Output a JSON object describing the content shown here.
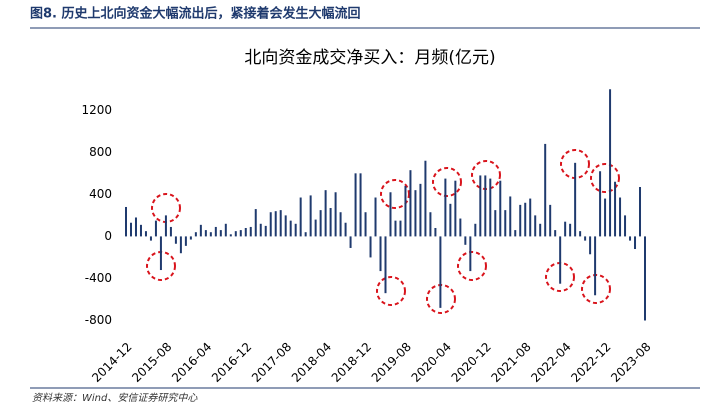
{
  "header": {
    "title": "图8. 历史上北向资金大幅流出后，紧接着会发生大幅流回"
  },
  "source": "资料来源：Wind、安信证券研究中心",
  "chart_data": {
    "type": "bar",
    "title": "北向资金成交净买入：月频(亿元)",
    "color": "#1f3a6e",
    "categories": [
      "2014-12",
      null,
      null,
      null,
      null,
      null,
      null,
      null,
      "2015-08",
      null,
      null,
      null,
      null,
      null,
      null,
      null,
      "2016-04",
      null,
      null,
      null,
      null,
      null,
      null,
      null,
      "2016-12",
      null,
      null,
      null,
      null,
      null,
      null,
      null,
      "2017-08",
      null,
      null,
      null,
      null,
      null,
      null,
      null,
      "2018-04",
      null,
      null,
      null,
      null,
      null,
      null,
      null,
      "2018-12",
      null,
      null,
      null,
      null,
      null,
      null,
      null,
      "2019-08",
      null,
      null,
      null,
      null,
      null,
      null,
      null,
      "2020-04",
      null,
      null,
      null,
      null,
      null,
      null,
      null,
      "2020-12",
      null,
      null,
      null,
      null,
      null,
      null,
      null,
      "2021-08",
      null,
      null,
      null,
      null,
      null,
      null,
      null,
      "2022-04",
      null,
      null,
      null,
      null,
      null,
      null,
      null,
      "2022-12",
      null,
      null,
      null,
      null,
      null,
      null,
      null,
      "2023-08"
    ],
    "values": [
      280,
      130,
      180,
      110,
      50,
      -40,
      150,
      -320,
      200,
      90,
      -70,
      -160,
      -90,
      -30,
      40,
      110,
      60,
      40,
      90,
      60,
      120,
      20,
      50,
      60,
      80,
      90,
      260,
      120,
      100,
      230,
      240,
      250,
      200,
      150,
      120,
      370,
      40,
      390,
      160,
      250,
      440,
      270,
      420,
      230,
      130,
      -110,
      600,
      600,
      230,
      -200,
      370,
      -330,
      -540,
      420,
      150,
      150,
      480,
      630,
      440,
      500,
      720,
      230,
      80,
      -680,
      550,
      310,
      530,
      170,
      -80,
      -330,
      120,
      580,
      580,
      550,
      250,
      530,
      250,
      380,
      60,
      300,
      320,
      360,
      200,
      120,
      880,
      300,
      60,
      -450,
      140,
      120,
      700,
      50,
      -40,
      -170,
      -560,
      620,
      360,
      1400,
      520,
      370,
      200,
      -40,
      -120,
      470,
      -800
    ],
    "ylim": [
      -900,
      1450
    ],
    "yticks": [
      -800,
      -400,
      0,
      400,
      800,
      1200
    ],
    "grid": false
  }
}
